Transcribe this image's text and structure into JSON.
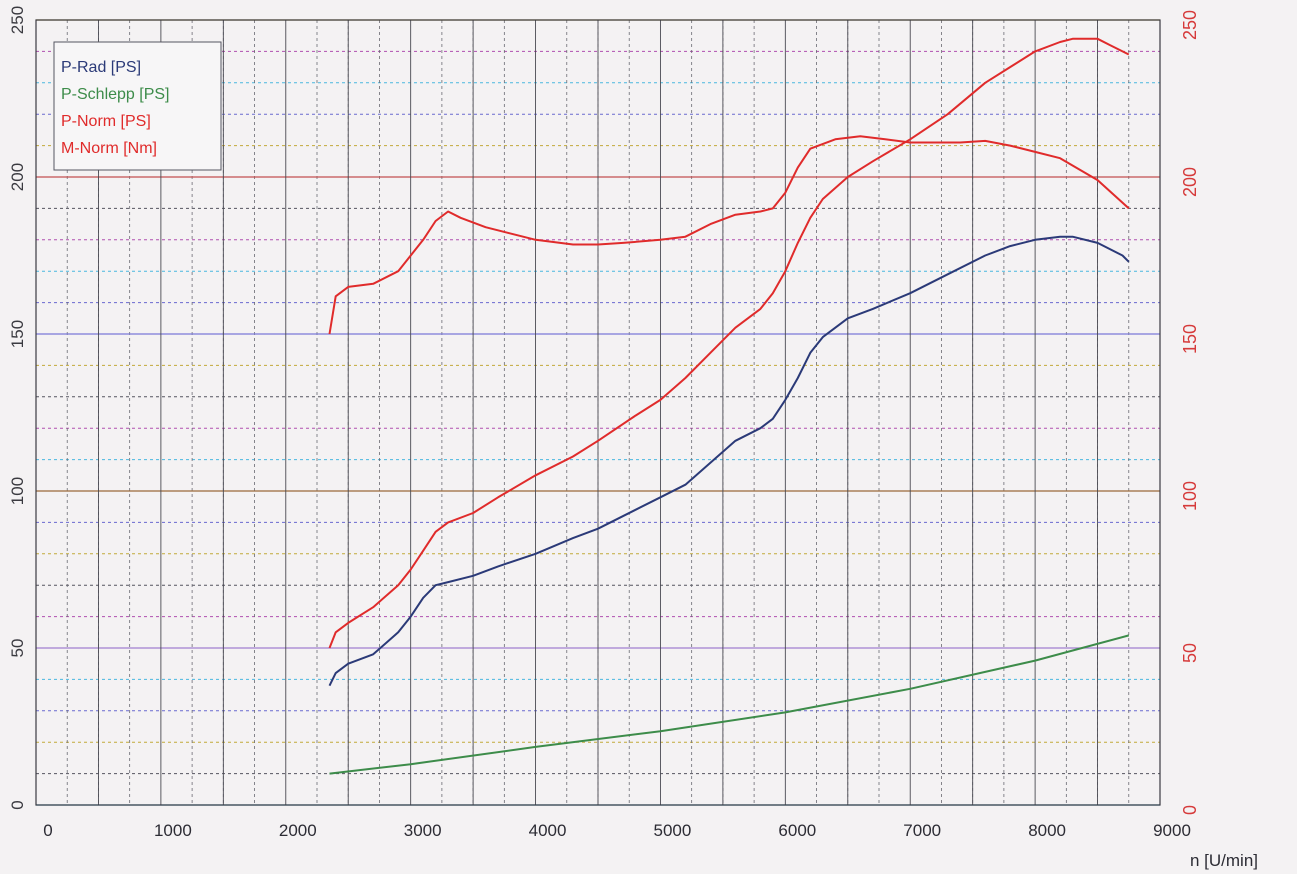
{
  "chart_data": {
    "type": "line",
    "title": "",
    "xlabel": "n [U/min]",
    "ylabel": "",
    "xlim": [
      0,
      9000
    ],
    "ylim": [
      0,
      250
    ],
    "y2lim": [
      0,
      250
    ],
    "x_ticks": [
      "0",
      "1000",
      "2000",
      "3000",
      "4000",
      "5000",
      "6000",
      "7000",
      "8000",
      "9000"
    ],
    "y_ticks_left": [
      "0",
      "50",
      "100",
      "150",
      "200",
      "250"
    ],
    "y_ticks_right": [
      "0",
      "50",
      "100",
      "150",
      "200",
      "250"
    ],
    "grid": true,
    "legend_position": "top-left",
    "series": [
      {
        "name": "P-Rad [PS]",
        "color": "#2b3a78",
        "x": [
          2350,
          2400,
          2500,
          2700,
          2900,
          3000,
          3100,
          3200,
          3300,
          3500,
          3700,
          4000,
          4300,
          4500,
          4800,
          5000,
          5200,
          5400,
          5600,
          5800,
          5900,
          6000,
          6100,
          6200,
          6300,
          6500,
          6700,
          7000,
          7300,
          7600,
          7800,
          8000,
          8200,
          8300,
          8500,
          8700,
          8750
        ],
        "y": [
          38,
          42,
          45,
          48,
          55,
          60,
          66,
          70,
          71,
          73,
          76,
          80,
          85,
          88,
          94,
          98,
          102,
          109,
          116,
          120,
          123,
          129,
          136,
          144,
          149,
          155,
          158,
          163,
          169,
          175,
          178,
          180,
          181,
          181,
          179,
          175,
          173
        ]
      },
      {
        "name": "P-Schlepp [PS]",
        "color": "#3d8c4a",
        "x": [
          2350,
          3000,
          4000,
          5000,
          6000,
          7000,
          8000,
          8750
        ],
        "y": [
          10,
          13,
          18.5,
          23.5,
          29.5,
          37,
          46,
          54
        ]
      },
      {
        "name": "P-Norm [PS]",
        "color": "#e02b2b",
        "x": [
          2350,
          2400,
          2500,
          2700,
          2900,
          3000,
          3100,
          3200,
          3300,
          3500,
          3700,
          4000,
          4300,
          4500,
          4800,
          5000,
          5200,
          5400,
          5600,
          5800,
          5900,
          6000,
          6100,
          6200,
          6300,
          6500,
          6700,
          7000,
          7300,
          7600,
          7800,
          8000,
          8200,
          8300,
          8500,
          8600,
          8750
        ],
        "y": [
          50,
          55,
          58,
          63,
          70,
          75,
          81,
          87,
          90,
          93,
          98,
          105,
          111,
          116,
          124,
          129,
          136,
          144,
          152,
          158,
          163,
          170,
          179,
          187,
          193,
          200,
          205,
          212,
          220,
          230,
          235,
          240,
          243,
          244,
          244,
          242,
          239
        ]
      },
      {
        "name": "M-Norm [Nm]",
        "color": "#e02b2b",
        "x": [
          2350,
          2400,
          2500,
          2700,
          2900,
          3100,
          3200,
          3300,
          3400,
          3600,
          4000,
          4300,
          4500,
          4700,
          5000,
          5200,
          5400,
          5600,
          5800,
          5900,
          6000,
          6100,
          6200,
          6400,
          6600,
          6800,
          7000,
          7400,
          7600,
          7800,
          8000,
          8200,
          8500,
          8750
        ],
        "y": [
          150,
          162,
          165,
          166,
          170,
          180,
          186,
          189,
          187,
          184,
          180,
          178.5,
          178.5,
          179,
          180,
          181,
          185,
          188,
          189,
          190,
          195,
          203,
          209,
          212,
          213,
          212,
          211,
          211,
          211.5,
          210,
          208,
          206,
          199,
          190
        ]
      }
    ]
  }
}
